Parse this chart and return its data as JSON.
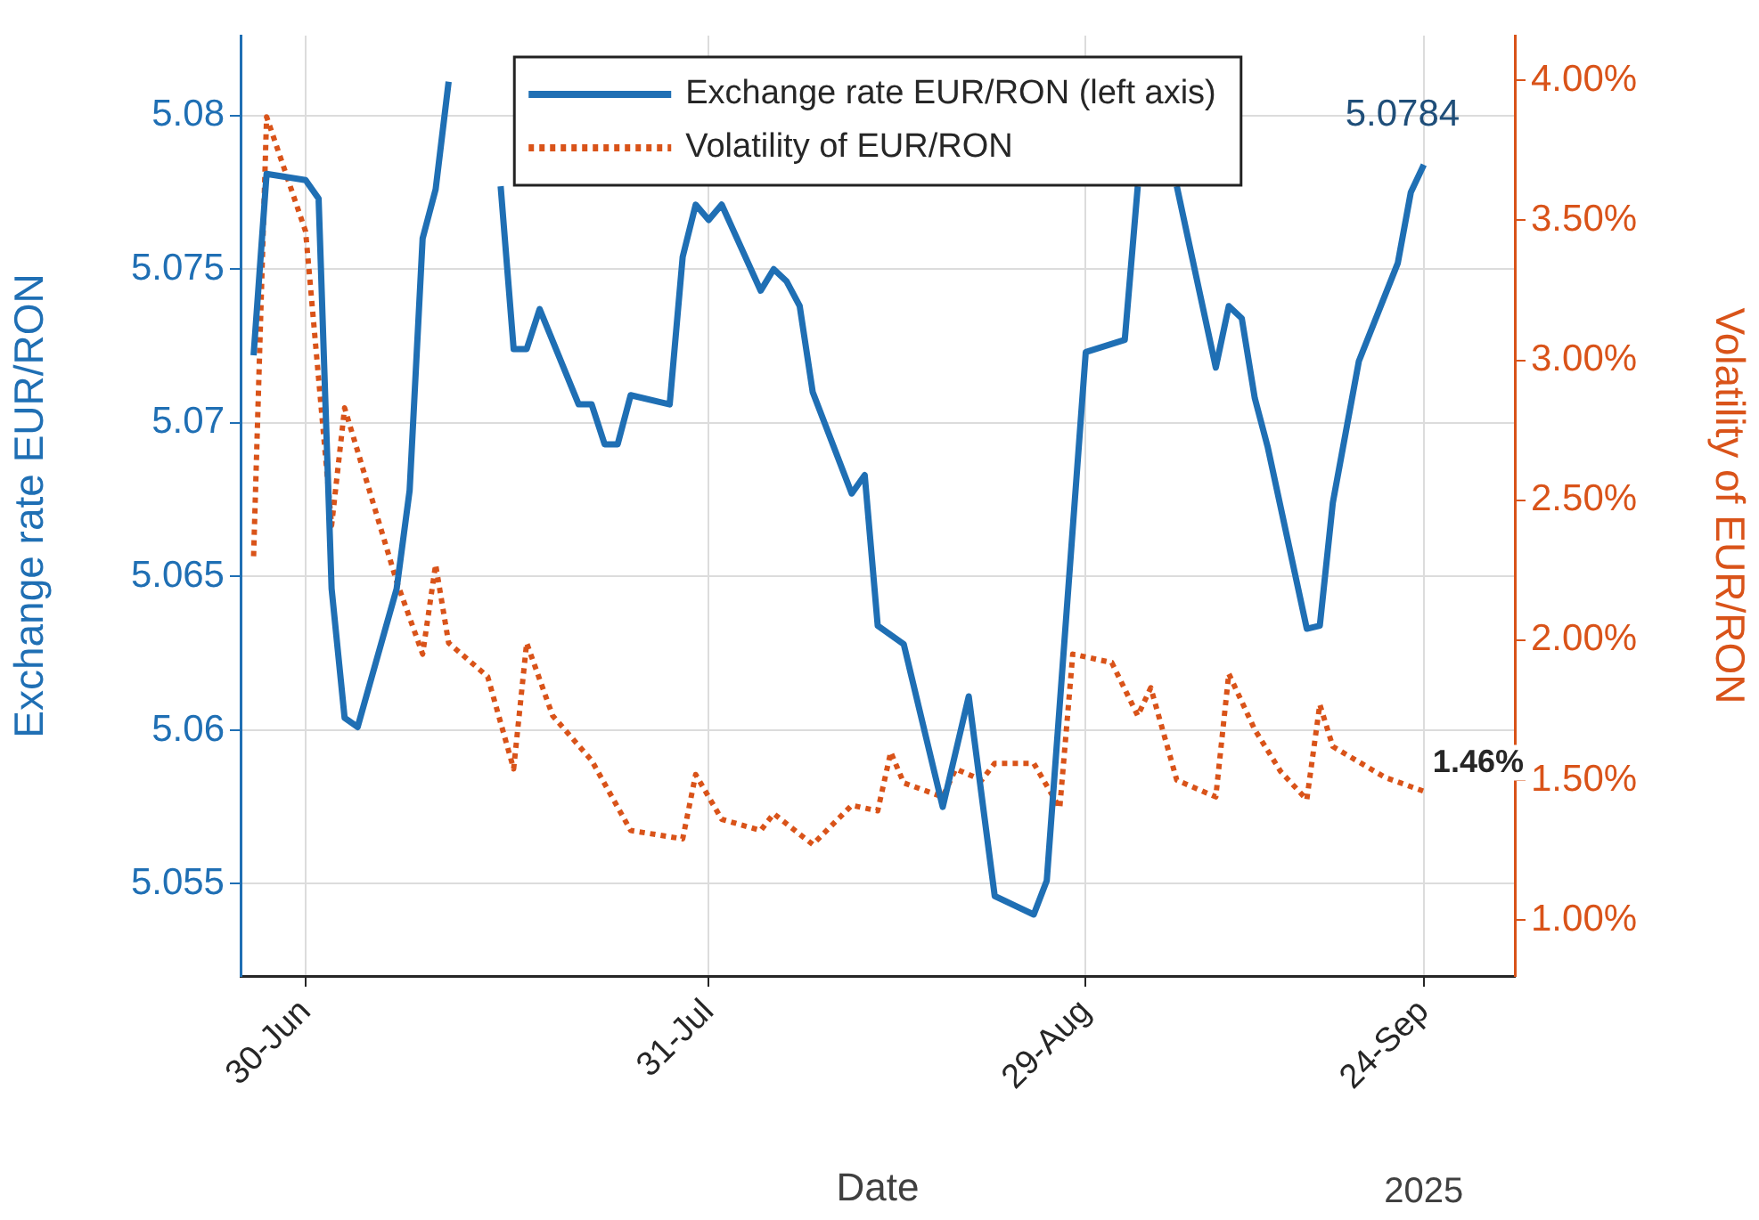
{
  "chart_data": {
    "type": "line",
    "xlabel": "Date",
    "ylabel": "Exchange rate EUR/RON",
    "y2label": "Volatility of EUR/RON",
    "xlim": [
      "2025-06-25",
      "2025-10-01"
    ],
    "xticks": [
      {
        "value": "2025-06-30",
        "label": "30-Jun"
      },
      {
        "value": "2025-07-31",
        "label": "31-Jul"
      },
      {
        "value": "2025-08-29",
        "label": "29-Aug"
      },
      {
        "value": "2025-09-24",
        "label": "24-Sep"
      }
    ],
    "ylim": [
      5.052,
      5.0826
    ],
    "yticks": [
      5.055,
      5.06,
      5.065,
      5.07,
      5.075,
      5.08
    ],
    "y2lim": [
      0.8,
      4.16
    ],
    "y2ticks": [
      {
        "value": 1,
        "label": "1.00%"
      },
      {
        "value": 1.5,
        "label": "1.50%"
      },
      {
        "value": 2,
        "label": "2.00%"
      },
      {
        "value": 2.5,
        "label": "2.50%"
      },
      {
        "value": 3,
        "label": "3.00%"
      },
      {
        "value": 3.5,
        "label": "3.50%"
      },
      {
        "value": 4,
        "label": "4.00%"
      }
    ],
    "grid": true,
    "legend": "top",
    "marker": "none",
    "series": [
      {
        "name": "Exchange rate EUR/RON (left axis)",
        "color": "#1f6fb4",
        "line_style": "solid",
        "x": [
          "2025-06-26",
          "2025-06-27",
          "2025-06-30",
          "2025-07-01",
          "2025-07-02",
          "2025-07-03",
          "2025-07-04",
          "2025-07-07",
          "2025-07-08",
          "2025-07-09",
          "2025-07-10",
          "2025-07-11",
          "2025-07-14",
          "2025-07-15",
          "2025-07-16",
          "2025-07-17",
          "2025-07-18",
          "2025-07-21",
          "2025-07-22",
          "2025-07-23",
          "2025-07-24",
          "2025-07-25",
          "2025-07-28",
          "2025-07-29",
          "2025-07-30",
          "2025-07-31",
          "2025-08-01",
          "2025-08-04",
          "2025-08-05",
          "2025-08-06",
          "2025-08-07",
          "2025-08-08",
          "2025-08-11",
          "2025-08-12",
          "2025-08-13",
          "2025-08-15",
          "2025-08-18",
          "2025-08-20",
          "2025-08-22",
          "2025-08-25",
          "2025-08-26",
          "2025-08-29",
          "2025-09-01",
          "2025-09-02",
          "2025-09-03",
          "2025-09-05",
          "2025-09-08",
          "2025-09-09",
          "2025-09-10",
          "2025-09-11",
          "2025-09-12",
          "2025-09-15",
          "2025-09-16",
          "2025-09-17",
          "2025-09-19",
          "2025-09-22",
          "2025-09-23",
          "2025-09-24"
        ],
        "values": [
          5.0722,
          5.0781,
          5.0779,
          5.0773,
          5.0646,
          5.0604,
          5.0601,
          5.0646,
          5.0678,
          5.076,
          5.0776,
          5.0811,
          null,
          5.0777,
          5.0724,
          5.0724,
          5.0737,
          5.0706,
          5.0706,
          5.0693,
          5.0693,
          5.0709,
          5.0706,
          5.0754,
          5.0771,
          5.0766,
          5.0771,
          5.0743,
          5.075,
          5.0746,
          5.0738,
          5.071,
          5.0677,
          5.0683,
          5.0634,
          5.0628,
          5.0575,
          5.0611,
          5.0546,
          5.054,
          5.0551,
          5.0723,
          5.0727,
          5.0777,
          null,
          5.0777,
          5.0718,
          5.0738,
          5.0734,
          5.0708,
          5.0692,
          5.0633,
          5.0634,
          5.0674,
          5.072,
          5.0752,
          5.0775,
          5.0784
        ]
      },
      {
        "name": "Volatility of EUR/RON",
        "color": "#d95319",
        "line_style": "dotted",
        "axis": "y2",
        "x": [
          "2025-06-26",
          "2025-06-27",
          "2025-06-30",
          "2025-07-02",
          "2025-07-03",
          "2025-07-07",
          "2025-07-09",
          "2025-07-10",
          "2025-07-11",
          "2025-07-14",
          "2025-07-16",
          "2025-07-17",
          "2025-07-19",
          "2025-07-22",
          "2025-07-25",
          "2025-07-29",
          "2025-07-30",
          "2025-08-01",
          "2025-08-04",
          "2025-08-05",
          "2025-08-08",
          "2025-08-11",
          "2025-08-13",
          "2025-08-14",
          "2025-08-15",
          "2025-08-18",
          "2025-08-19",
          "2025-08-21",
          "2025-08-22",
          "2025-08-25",
          "2025-08-27",
          "2025-08-28",
          "2025-08-31",
          "2025-09-02",
          "2025-09-03",
          "2025-09-05",
          "2025-09-08",
          "2025-09-09",
          "2025-09-11",
          "2025-09-13",
          "2025-09-15",
          "2025-09-16",
          "2025-09-17",
          "2025-09-21",
          "2025-09-24"
        ],
        "values": [
          2.3,
          3.87,
          3.46,
          2.41,
          2.83,
          2.21,
          1.95,
          2.27,
          1.99,
          1.87,
          1.54,
          1.99,
          1.73,
          1.57,
          1.32,
          1.29,
          1.52,
          1.36,
          1.32,
          1.38,
          1.27,
          1.41,
          1.39,
          1.6,
          1.49,
          1.44,
          1.54,
          1.5,
          1.56,
          1.56,
          1.4,
          1.95,
          1.92,
          1.73,
          1.83,
          1.5,
          1.44,
          1.88,
          1.68,
          1.53,
          1.43,
          1.77,
          1.62,
          1.51,
          1.46
        ]
      }
    ],
    "annotations": [
      {
        "text": "5.0784",
        "x": "2025-09-24",
        "y": 5.0784
      },
      "1.46%",
      "2025"
    ]
  }
}
